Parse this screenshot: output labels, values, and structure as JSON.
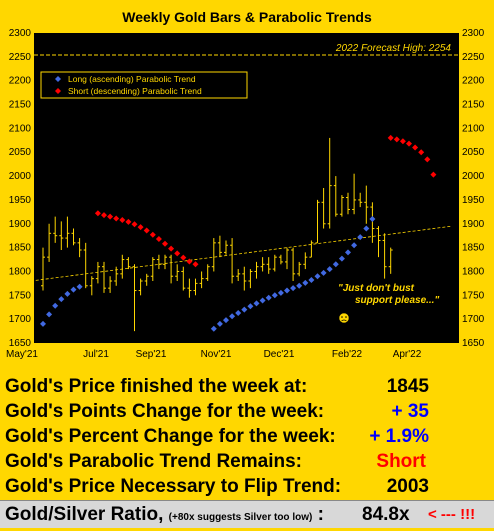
{
  "chart_data": {
    "type": "candlestick-bars",
    "title": "Weekly Gold Bars & Parabolic Trends",
    "ylim": [
      1650,
      2300
    ],
    "yticks": [
      1650,
      1700,
      1750,
      1800,
      1850,
      1900,
      1950,
      2000,
      2050,
      2100,
      2150,
      2200,
      2250,
      2300
    ],
    "xlabels": [
      "May'21",
      "Jul'21",
      "Sep'21",
      "Nov'21",
      "Dec'21",
      "Feb'22",
      "Apr'22"
    ],
    "forecast": {
      "label": "2022 Forecast High: 2254",
      "value": 2254
    },
    "legend": [
      {
        "name": "Long (ascending) Parabolic Trend",
        "color": "#4169e1"
      },
      {
        "name": "Short (descending) Parabolic Trend",
        "color": "#ff0000"
      }
    ],
    "annotation": [
      "\"Just don't bust",
      "support please...\""
    ],
    "bars": [
      [
        1770,
        1850,
        1760,
        1830
      ],
      [
        1830,
        1900,
        1820,
        1880
      ],
      [
        1880,
        1915,
        1860,
        1875
      ],
      [
        1875,
        1905,
        1845,
        1870
      ],
      [
        1870,
        1915,
        1850,
        1880
      ],
      [
        1880,
        1890,
        1855,
        1860
      ],
      [
        1860,
        1870,
        1830,
        1845
      ],
      [
        1845,
        1860,
        1765,
        1770
      ],
      [
        1770,
        1790,
        1750,
        1785
      ],
      [
        1785,
        1820,
        1775,
        1810
      ],
      [
        1810,
        1820,
        1755,
        1765
      ],
      [
        1765,
        1790,
        1755,
        1780
      ],
      [
        1780,
        1810,
        1770,
        1795
      ],
      [
        1795,
        1835,
        1785,
        1825
      ],
      [
        1825,
        1830,
        1805,
        1810
      ],
      [
        1810,
        1815,
        1675,
        1760
      ],
      [
        1760,
        1785,
        1750,
        1780
      ],
      [
        1780,
        1795,
        1770,
        1790
      ],
      [
        1790,
        1830,
        1780,
        1825
      ],
      [
        1825,
        1835,
        1805,
        1815
      ],
      [
        1815,
        1835,
        1805,
        1830
      ],
      [
        1830,
        1835,
        1775,
        1790
      ],
      [
        1790,
        1815,
        1780,
        1800
      ],
      [
        1800,
        1810,
        1760,
        1765
      ],
      [
        1765,
        1785,
        1745,
        1760
      ],
      [
        1760,
        1785,
        1750,
        1775
      ],
      [
        1775,
        1800,
        1765,
        1785
      ],
      [
        1785,
        1815,
        1780,
        1810
      ],
      [
        1810,
        1870,
        1800,
        1860
      ],
      [
        1860,
        1875,
        1830,
        1840
      ],
      [
        1840,
        1865,
        1835,
        1855
      ],
      [
        1855,
        1870,
        1775,
        1790
      ],
      [
        1790,
        1805,
        1780,
        1795
      ],
      [
        1795,
        1810,
        1760,
        1780
      ],
      [
        1780,
        1805,
        1765,
        1800
      ],
      [
        1800,
        1820,
        1785,
        1810
      ],
      [
        1810,
        1830,
        1800,
        1815
      ],
      [
        1815,
        1830,
        1795,
        1805
      ],
      [
        1805,
        1835,
        1800,
        1830
      ],
      [
        1830,
        1835,
        1815,
        1820
      ],
      [
        1820,
        1850,
        1805,
        1845
      ],
      [
        1845,
        1850,
        1780,
        1795
      ],
      [
        1795,
        1820,
        1790,
        1815
      ],
      [
        1815,
        1840,
        1805,
        1830
      ],
      [
        1830,
        1865,
        1830,
        1860
      ],
      [
        1860,
        1950,
        1860,
        1945
      ],
      [
        1945,
        1975,
        1890,
        1900
      ],
      [
        1900,
        2080,
        1890,
        1980
      ],
      [
        1980,
        2000,
        1915,
        1920
      ],
      [
        1920,
        1960,
        1915,
        1955
      ],
      [
        1955,
        1965,
        1920,
        1930
      ],
      [
        1930,
        2005,
        1920,
        1950
      ],
      [
        1950,
        1965,
        1935,
        1945
      ],
      [
        1945,
        1980,
        1900,
        1935
      ],
      [
        1935,
        1945,
        1860,
        1890
      ],
      [
        1890,
        1895,
        1830,
        1865
      ],
      [
        1865,
        1880,
        1785,
        1810
      ],
      [
        1810,
        1850,
        1795,
        1845
      ]
    ],
    "long_trend": [
      [
        0,
        1690
      ],
      [
        1,
        1710
      ],
      [
        2,
        1728
      ],
      [
        3,
        1742
      ],
      [
        4,
        1753
      ],
      [
        5,
        1762
      ],
      [
        6,
        1768
      ],
      [
        28,
        1680
      ],
      [
        29,
        1690
      ],
      [
        30,
        1698
      ],
      [
        31,
        1706
      ],
      [
        32,
        1713
      ],
      [
        33,
        1720
      ],
      [
        34,
        1727
      ],
      [
        35,
        1733
      ],
      [
        36,
        1739
      ],
      [
        37,
        1745
      ],
      [
        38,
        1750
      ],
      [
        39,
        1755
      ],
      [
        40,
        1760
      ],
      [
        41,
        1765
      ],
      [
        42,
        1770
      ],
      [
        43,
        1776
      ],
      [
        44,
        1782
      ],
      [
        45,
        1790
      ],
      [
        46,
        1797
      ],
      [
        47,
        1805
      ],
      [
        48,
        1815
      ],
      [
        49,
        1827
      ],
      [
        50,
        1840
      ],
      [
        51,
        1855
      ],
      [
        52,
        1872
      ],
      [
        53,
        1890
      ],
      [
        54,
        1910
      ]
    ],
    "short_trend": [
      [
        9,
        1922
      ],
      [
        10,
        1918
      ],
      [
        11,
        1915
      ],
      [
        12,
        1911
      ],
      [
        13,
        1908
      ],
      [
        14,
        1904
      ],
      [
        15,
        1899
      ],
      [
        16,
        1893
      ],
      [
        17,
        1886
      ],
      [
        18,
        1877
      ],
      [
        19,
        1868
      ],
      [
        20,
        1858
      ],
      [
        21,
        1848
      ],
      [
        22,
        1838
      ],
      [
        23,
        1829
      ],
      [
        24,
        1821
      ],
      [
        25,
        1815
      ],
      [
        57,
        2080
      ],
      [
        58,
        2077
      ],
      [
        59,
        2073
      ],
      [
        60,
        2068
      ],
      [
        61,
        2060
      ],
      [
        62,
        2050
      ],
      [
        63,
        2035
      ],
      [
        64,
        2003
      ]
    ],
    "trendline": [
      [
        -2,
        1780
      ],
      [
        67,
        1895
      ]
    ]
  },
  "stats": {
    "r1": {
      "label": "Gold's Price finished the week at:",
      "value": "1845",
      "color": "#000000"
    },
    "r2": {
      "label": "Gold's Points Change for the week:",
      "value": "+ 35",
      "color": "#0000ff"
    },
    "r3": {
      "label": "Gold's Percent Change for the week:",
      "value": "+ 1.9%",
      "color": "#0000ff"
    },
    "r4": {
      "label": "Gold's Parabolic Trend Remains:",
      "value": "Short",
      "color": "#ff0000"
    },
    "r5": {
      "label": "Gold's Price Necessary to Flip Trend:",
      "value": "2003",
      "color": "#000000"
    },
    "r6": {
      "label": "Gold/Silver Ratio,",
      "note": "(+80x suggests Silver too low)",
      "sep": ":",
      "value": "84.8x",
      "arrow": "< --- !!!"
    }
  }
}
